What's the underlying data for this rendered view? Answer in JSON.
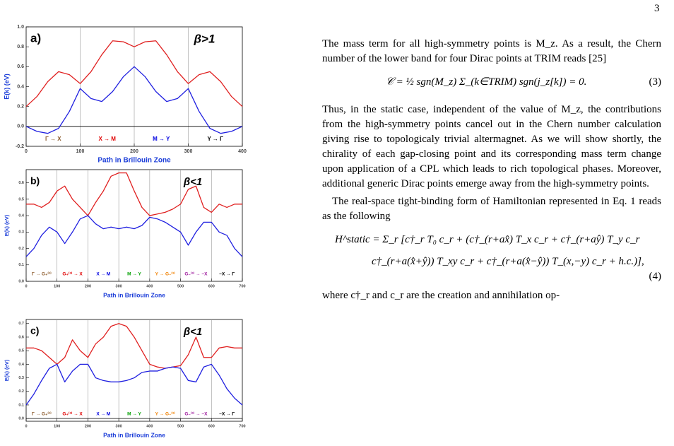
{
  "page_number": "3",
  "chart_data": [
    {
      "type": "line",
      "panel_label": "a)",
      "annotation": "β>1",
      "annotation_x": 330,
      "xlabel": "Path in Brillouin Zone",
      "ylabel": "E(k) (eV)",
      "xlim": [
        0,
        400
      ],
      "xticks": [
        0,
        100,
        200,
        300,
        400
      ],
      "ylim": [
        -0.2,
        1.0
      ],
      "yticks": [
        {
          "value": 1.0,
          "label": "1.0"
        },
        0.8,
        0.6,
        0.4,
        0.2,
        {
          "value": 0,
          "label": "0.0"
        },
        -0.2
      ],
      "segment_bounds": [
        100,
        200,
        300
      ],
      "segments": [
        {
          "label": "Γ → X",
          "color": "#8b5a2b"
        },
        {
          "label": "X → M",
          "color": "#e00000"
        },
        {
          "label": "M → Y",
          "color": "#0000e0"
        },
        {
          "label": "Y → Γ",
          "color": "#000000"
        }
      ],
      "x": [
        0,
        20,
        40,
        60,
        80,
        100,
        120,
        140,
        160,
        180,
        200,
        220,
        240,
        260,
        280,
        300,
        320,
        340,
        360,
        380,
        400
      ],
      "series": [
        {
          "color": "#e02020",
          "values": [
            0.2,
            0.3,
            0.45,
            0.55,
            0.52,
            0.43,
            0.55,
            0.72,
            0.86,
            0.85,
            0.8,
            0.85,
            0.86,
            0.72,
            0.55,
            0.43,
            0.52,
            0.55,
            0.45,
            0.3,
            0.2
          ]
        },
        {
          "color": "#2020e0",
          "values": [
            0.0,
            -0.05,
            -0.07,
            -0.02,
            0.15,
            0.38,
            0.28,
            0.25,
            0.35,
            0.5,
            0.6,
            0.5,
            0.35,
            0.25,
            0.28,
            0.38,
            0.15,
            -0.02,
            -0.07,
            -0.05,
            0.0
          ]
        }
      ]
    },
    {
      "type": "line",
      "panel_label": "b)",
      "annotation": "β<1",
      "annotation_x": 540,
      "xlabel": "Path in Brillouin Zone",
      "ylabel": "E(k) (eV)",
      "xlim": [
        0,
        700
      ],
      "xticks": [
        0,
        100,
        200,
        300,
        400,
        500,
        600,
        700
      ],
      "ylim": [
        0,
        0.68
      ],
      "yticks": [
        0.6,
        0.5,
        0.4,
        0.3,
        0.2,
        0.1,
        {
          "value": 0,
          "label": "0.0"
        }
      ],
      "segment_bounds": [
        100,
        200,
        300,
        400,
        500,
        600
      ],
      "segments": [
        {
          "label": "Γ → G₊⁽³⁾",
          "color": "#8b5a2b"
        },
        {
          "label": "G₊⁽³⁾ → X",
          "color": "#e00000"
        },
        {
          "label": "X → M",
          "color": "#0000e0"
        },
        {
          "label": "M → Y",
          "color": "#00a000"
        },
        {
          "label": "Y → G₋⁽³⁾",
          "color": "#f08000"
        },
        {
          "label": "G₋⁽³⁾ → −X",
          "color": "#a020a0"
        },
        {
          "label": "−X → Γ",
          "color": "#000000"
        }
      ],
      "x": [
        0,
        25,
        50,
        75,
        100,
        125,
        150,
        175,
        200,
        225,
        250,
        275,
        300,
        325,
        350,
        375,
        400,
        425,
        450,
        475,
        500,
        525,
        550,
        575,
        600,
        625,
        650,
        675,
        700
      ],
      "series": [
        {
          "color": "#e02020",
          "values": [
            0.47,
            0.47,
            0.45,
            0.48,
            0.55,
            0.58,
            0.5,
            0.45,
            0.4,
            0.48,
            0.55,
            0.64,
            0.66,
            0.66,
            0.55,
            0.45,
            0.4,
            0.41,
            0.42,
            0.44,
            0.47,
            0.56,
            0.58,
            0.45,
            0.42,
            0.47,
            0.45,
            0.47,
            0.47
          ]
        },
        {
          "color": "#2020e0",
          "values": [
            0.15,
            0.2,
            0.28,
            0.33,
            0.3,
            0.23,
            0.3,
            0.38,
            0.4,
            0.35,
            0.32,
            0.33,
            0.32,
            0.33,
            0.32,
            0.34,
            0.39,
            0.38,
            0.36,
            0.33,
            0.3,
            0.22,
            0.3,
            0.36,
            0.36,
            0.3,
            0.28,
            0.2,
            0.15
          ]
        }
      ]
    },
    {
      "type": "line",
      "panel_label": "c)",
      "annotation": "β<1",
      "annotation_x": 540,
      "xlabel": "Path in Brillouin Zone",
      "ylabel": "E(k) (eV)",
      "xlim": [
        0,
        700
      ],
      "xticks": [
        0,
        100,
        200,
        300,
        400,
        500,
        600,
        700
      ],
      "ylim": [
        -0.02,
        0.73
      ],
      "yticks": [
        0.7,
        0.6,
        0.5,
        0.4,
        0.3,
        0.2,
        0.1,
        {
          "value": 0,
          "label": "0.0"
        }
      ],
      "segment_bounds": [
        100,
        200,
        300,
        400,
        500,
        600
      ],
      "segments": [
        {
          "label": "Γ → G₊⁽³⁾",
          "color": "#8b5a2b"
        },
        {
          "label": "G₊⁽³⁾ → X",
          "color": "#e00000"
        },
        {
          "label": "X → M",
          "color": "#0000e0"
        },
        {
          "label": "M → Y",
          "color": "#00a000"
        },
        {
          "label": "Y → G₋⁽³⁾",
          "color": "#f08000"
        },
        {
          "label": "G₋⁽³⁾ → −X",
          "color": "#a020a0"
        },
        {
          "label": "−X → Γ",
          "color": "#000000"
        }
      ],
      "x": [
        0,
        25,
        50,
        75,
        100,
        125,
        150,
        175,
        200,
        225,
        250,
        275,
        300,
        325,
        350,
        375,
        400,
        425,
        450,
        475,
        500,
        525,
        550,
        575,
        600,
        625,
        650,
        675,
        700
      ],
      "series": [
        {
          "color": "#e02020",
          "values": [
            0.52,
            0.52,
            0.5,
            0.45,
            0.4,
            0.45,
            0.58,
            0.5,
            0.45,
            0.55,
            0.6,
            0.68,
            0.7,
            0.68,
            0.6,
            0.5,
            0.4,
            0.38,
            0.37,
            0.38,
            0.39,
            0.47,
            0.6,
            0.45,
            0.45,
            0.52,
            0.53,
            0.52,
            0.52
          ]
        },
        {
          "color": "#2020e0",
          "values": [
            0.1,
            0.18,
            0.28,
            0.37,
            0.4,
            0.27,
            0.35,
            0.4,
            0.4,
            0.3,
            0.28,
            0.27,
            0.27,
            0.28,
            0.3,
            0.34,
            0.35,
            0.35,
            0.37,
            0.38,
            0.37,
            0.28,
            0.27,
            0.38,
            0.4,
            0.32,
            0.22,
            0.15,
            0.1
          ]
        }
      ]
    }
  ],
  "text": {
    "p1": "The mass term for all high-symmetry points is M_z. As a result, the Chern number of the lower band for four Dirac points at TRIM reads [25]",
    "eq3": "𝒞 = ½ sgn(M_z) Σ_(k∈TRIM) sgn(j_z[k]) = 0.",
    "eq3_num": "(3)",
    "p2": "Thus, in the static case, independent of the value of M_z, the contributions from the high-symmetry points cancel out in the Chern number calculation giving rise to topologicaly trivial altermagnet. As we will show shortly, the chirality of each gap-closing point and its corresponding mass term change upon application of a CPL which leads to rich topological phases. Moreover, additional generic Dirac points emerge away from the high-symmetry points.",
    "p3": "The real-space tight-binding form of Hamiltonian represented in Eq. 1 reads as the following",
    "eq4_line1": "H^static = Σ_r [c†_r T₀ c_r + (c†_(r+ax̂) T_x c_r + c†_(r+aŷ) T_y c_r",
    "eq4_line2": "c†_(r+a(x̂+ŷ)) T_xy c_r + c†_(r+a(x̂−ŷ)) T_(x,−y) c_r + h.c.)],",
    "eq4_num": "(4)",
    "p4": "where c†_r and c_r are the creation and annihilation op-"
  }
}
